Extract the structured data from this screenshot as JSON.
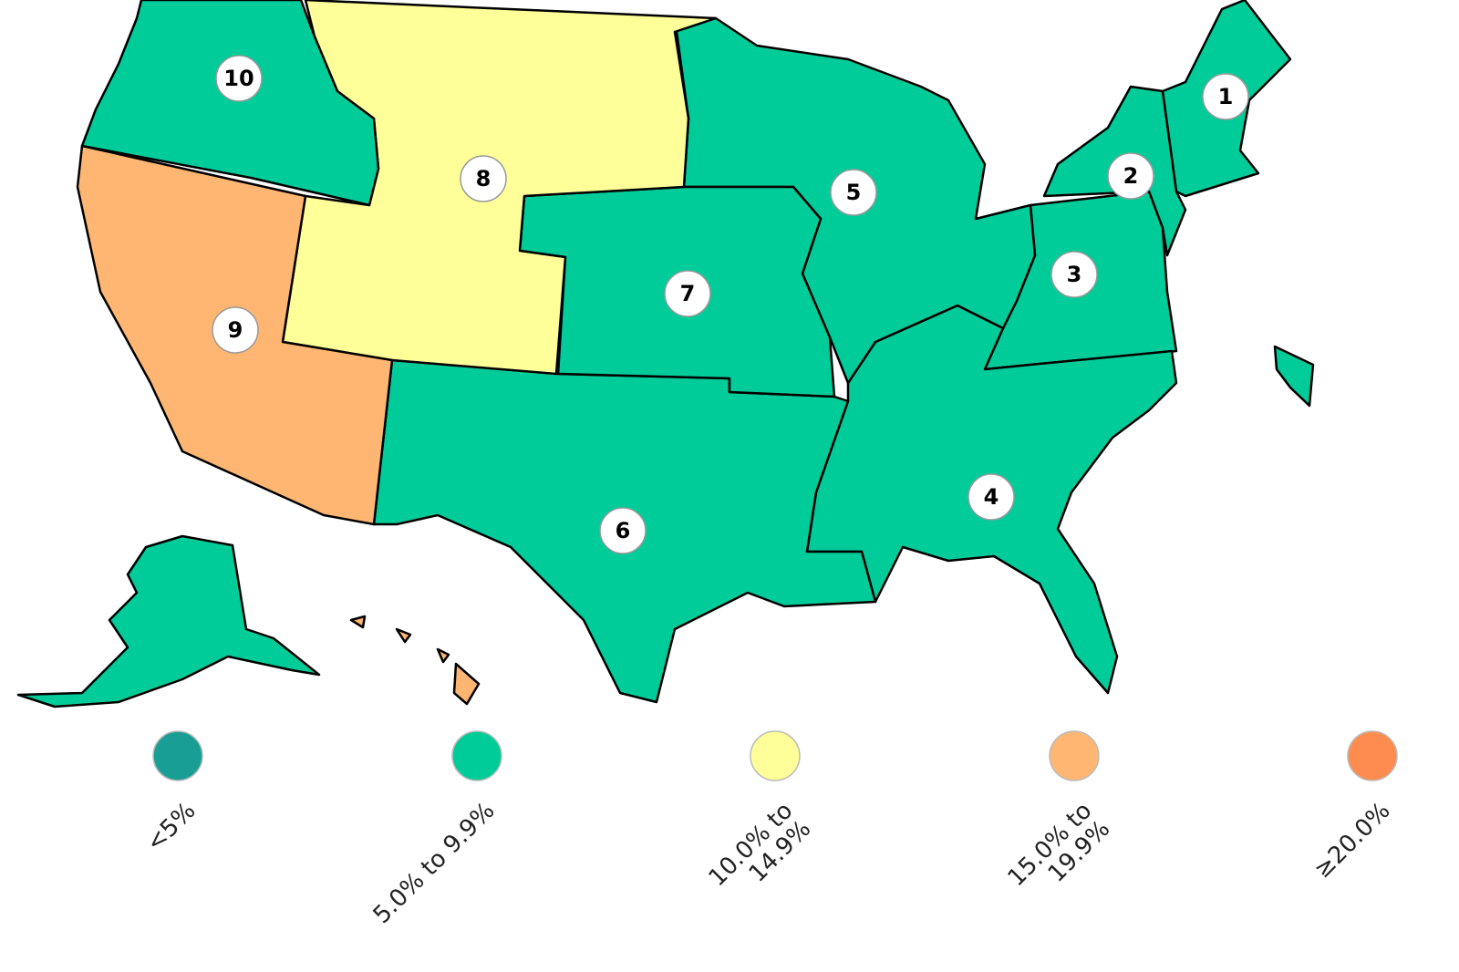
{
  "map": {
    "regions": [
      {
        "label": "1",
        "color": "#00cc99"
      },
      {
        "label": "2",
        "color": "#00cc99"
      },
      {
        "label": "3",
        "color": "#00cc99"
      },
      {
        "label": "4",
        "color": "#00cc99"
      },
      {
        "label": "5",
        "color": "#00cc99"
      },
      {
        "label": "6",
        "color": "#00cc99"
      },
      {
        "label": "7",
        "color": "#00cc99"
      },
      {
        "label": "8",
        "color": "#ffff99"
      },
      {
        "label": "9",
        "color": "#ffb673"
      },
      {
        "label": "10",
        "color": "#00cc99"
      }
    ],
    "legend": [
      {
        "label": "<5%",
        "color": "#199e96"
      },
      {
        "label": "5.0% to 9.9%",
        "color": "#00cc99"
      },
      {
        "label": "10.0% to 14.9%",
        "color": "#ffff99"
      },
      {
        "label": "15.0% to 19.9%",
        "color": "#ffb673"
      },
      {
        "label": "≥20.0%",
        "color": "#ff8c4f"
      }
    ]
  }
}
